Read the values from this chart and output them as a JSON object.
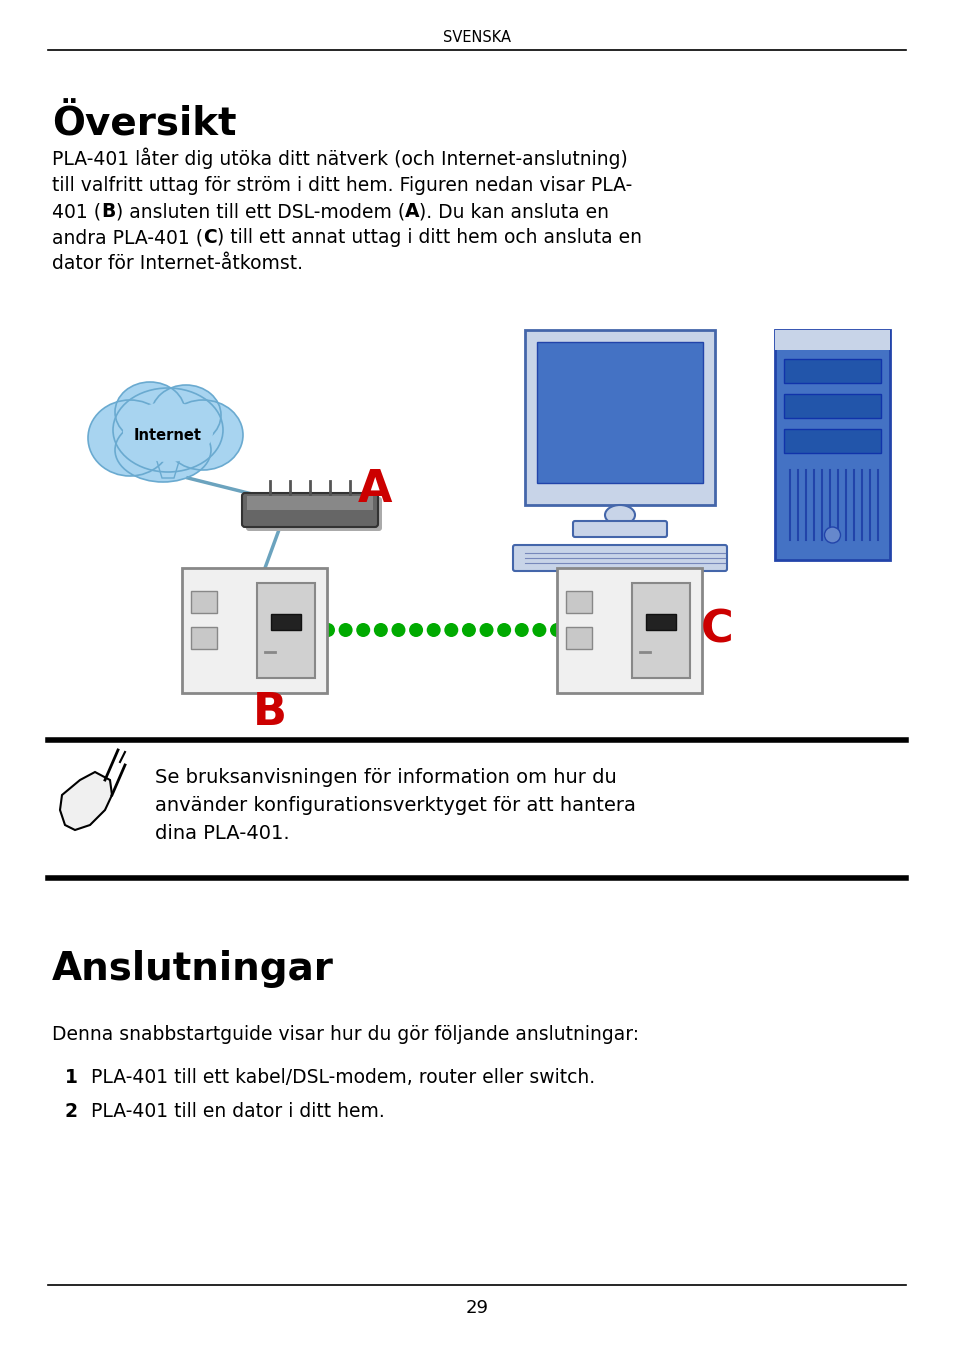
{
  "bg_color": "#ffffff",
  "header_text": "SVENSKA",
  "title1": "Översikt",
  "body1_lines": [
    "PLA-401 låter dig utöka ditt nätverk (och Internet-anslutning)",
    "till valfritt uttag för ström i ditt hem. Figuren nedan visar PLA-",
    "401 (​B​) ansluten till ett DSL-modem (​A​). Du kan ansluta en",
    "andra PLA-401 (​C​) till ett annat uttag i ditt hem och ansluta en",
    "dator för Internet-åtkomst."
  ],
  "body1_bold": [
    [
      false,
      false
    ],
    [
      false,
      false
    ],
    [
      false,
      false
    ],
    [
      false,
      false
    ],
    [
      false,
      false
    ]
  ],
  "note_text_lines": [
    "Se bruksanvisningen för information om hur du",
    "använder konfigurationsverktyget för att hantera",
    "dina PLA-401."
  ],
  "title2": "Anslutningar",
  "body2": "Denna snabbstartguide visar hur du gör följande anslutningar:",
  "item1_num": "1",
  "item1": " PLA-401 till ett kabel/DSL-modem, router eller switch.",
  "item2_num": "2",
  "item2": " PLA-401 till en dator i ditt hem.",
  "page_number": "29",
  "label_A": "A",
  "label_B": "B",
  "label_C": "C",
  "internet_label": "Internet",
  "cloud_color": "#A8D4F0",
  "cloud_edge": "#6AAAD0",
  "modem_color_top": "#888888",
  "modem_color_body": "#555555",
  "computer_blue": "#4472C4",
  "computer_gray": "#8898B8",
  "computer_light_gray": "#C8D4E8",
  "tower_color": "#4472C4",
  "tower_stripe": "#2255AA",
  "pla_outer": "#D8D8D8",
  "pla_inner": "#E8E8E8",
  "pla_device_color": "#C0C0C0",
  "pla_device_dark": "#303030",
  "wall_color": "#F0F0F0",
  "wall_edge": "#888888",
  "line_blue": "#6BA3BE",
  "dashed_green": "#00AA00",
  "label_red": "#CC0000"
}
